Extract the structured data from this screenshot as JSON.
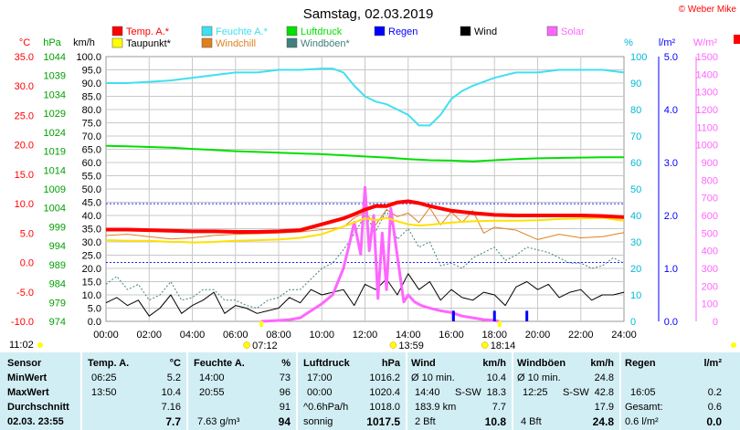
{
  "title": "Samstag, 02.03.2019",
  "copyright": "© Weber Mike",
  "legend": [
    {
      "label": "Temp. A.*",
      "color": "#ff0000"
    },
    {
      "label": "Feuchte A.*",
      "color": "#40e0f0"
    },
    {
      "label": "Luftdruck",
      "color": "#00e000"
    },
    {
      "label": "Regen",
      "color": "#0000ff"
    },
    {
      "label": "Wind",
      "color": "#000000"
    },
    {
      "label": "Solar",
      "color": "#ff66ff"
    },
    {
      "label": "Taupunkt*",
      "color": "#ffff00"
    },
    {
      "label": "Windchill",
      "color": "#e08020"
    },
    {
      "label": "Windböen*",
      "color": "#408080"
    }
  ],
  "axes": {
    "temp": {
      "unit": "°C",
      "color": "#ff0000",
      "ticks": [
        "35.0",
        "30.0",
        "25.0",
        "20.0",
        "15.0",
        "10.0",
        "5.0",
        "0.0",
        "-5.0",
        "-10.0"
      ]
    },
    "pressure": {
      "unit": "hPa",
      "color": "#00a000",
      "ticks": [
        "1044",
        "1039",
        "1034",
        "1029",
        "1024",
        "1019",
        "1014",
        "1009",
        "1004",
        "999",
        "994",
        "989",
        "984",
        "979",
        "974"
      ]
    },
    "wind": {
      "unit": "km/h",
      "color": "#000000",
      "ticks": [
        "100.0",
        "95.0",
        "90.0",
        "85.0",
        "80.0",
        "75.0",
        "70.0",
        "65.0",
        "60.0",
        "55.0",
        "50.0",
        "45.0",
        "40.0",
        "35.0",
        "30.0",
        "25.0",
        "20.0",
        "15.0",
        "10.0",
        "5.0",
        "0.0"
      ]
    },
    "humidity": {
      "unit": "%",
      "color": "#00b8d8",
      "ticks": [
        "100",
        "90",
        "80",
        "70",
        "60",
        "50",
        "40",
        "30",
        "20",
        "10",
        "0"
      ]
    },
    "rain": {
      "unit": "l/m²",
      "color": "#0000ff",
      "ticks": [
        "5.0",
        "4.0",
        "3.0",
        "2.0",
        "1.0",
        "0.0"
      ]
    },
    "solar": {
      "unit": "W/m²",
      "color": "#ff66ff",
      "ticks": [
        "1500",
        "1400",
        "1300",
        "1200",
        "1100",
        "1000",
        "900",
        "800",
        "700",
        "600",
        "500",
        "400",
        "300",
        "200",
        "100",
        "0"
      ]
    },
    "time": {
      "ticks": [
        "00:00",
        "02:00",
        "04:00",
        "06:00",
        "08:00",
        "10:00",
        "12:00",
        "14:00",
        "16:00",
        "18:00",
        "20:00",
        "22:00",
        "24:00"
      ]
    }
  },
  "sun": {
    "sunrise": "07:12",
    "noon": "13:59",
    "sunset": "18:14",
    "now": "11:02"
  },
  "stats": {
    "sensor": {
      "header": "Sensor",
      "min": "MinWert",
      "max": "MaxWert",
      "avg": "Durchschnitt",
      "current": "02.03. 23:55"
    },
    "temp": {
      "header": "Temp. A.",
      "unit": "°C",
      "min_time": "06:25",
      "min": "5.2",
      "max_time": "13:50",
      "max": "10.4",
      "avg": "7.16",
      "current": "7.7"
    },
    "humidity": {
      "header": "Feuchte A.",
      "unit": "%",
      "min_time": "14:00",
      "min": "73",
      "max_time": "20:55",
      "max": "96",
      "avg": "91",
      "abs": "7.63 g/m³",
      "current": "94"
    },
    "pressure": {
      "header": "Luftdruck",
      "unit": "hPa",
      "min_time": "17:00",
      "min": "1016.2",
      "max_time": "00:00",
      "max": "1020.4",
      "trend": "^0.6hPa/h",
      "avg": "1018.0",
      "state": "sonnig",
      "current": "1017.5"
    },
    "wind": {
      "header": "Wind",
      "unit": "km/h",
      "r1_label": "Ø 10 min.",
      "r1_val": "10.4",
      "r2_time": "14:40",
      "r2_dir": "S-SW",
      "r2_val": "18.3",
      "r3_label": "183.9 km",
      "r3_val": "7.7",
      "r4_label": "2 Bft",
      "r4_val": "10.8"
    },
    "gust": {
      "header": "Windböen",
      "unit": "km/h",
      "r1_label": "Ø 10 min.",
      "r1_val": "24.8",
      "r2_time": "12:25",
      "r2_dir": "S-SW",
      "r2_val": "42.8",
      "r3_val": "17.9",
      "r4_label": "4 Bft",
      "r4_val": "24.8"
    },
    "rain": {
      "header": "Regen",
      "unit": "l/m²",
      "r2_time": "16:05",
      "r2_val": "0.2",
      "r3_label": "Gesamt:",
      "r3_val": "0.6",
      "r4_label": "0.6 l/m²",
      "r4_val": "0.0"
    }
  },
  "chart_data": {
    "type": "line",
    "title": "Samstag, 02.03.2019",
    "x_unit": "hour of day",
    "xlim": [
      0,
      24
    ],
    "series": [
      {
        "name": "Feuchte A.*",
        "axis": "humidity",
        "unit": "%",
        "ylim": [
          0,
          100
        ],
        "x": [
          0,
          1,
          2,
          3,
          4,
          5,
          6,
          7,
          8,
          9,
          10,
          10.5,
          11,
          11.5,
          12,
          12.5,
          13,
          13.5,
          14,
          14.5,
          15,
          15.5,
          16,
          16.5,
          17,
          18,
          19,
          20,
          21,
          22,
          23,
          24
        ],
        "y": [
          90,
          90,
          90.5,
          91,
          92,
          93,
          94,
          94,
          95,
          95,
          95.5,
          95.5,
          94,
          89,
          85,
          83,
          82,
          80,
          78,
          74,
          74,
          78,
          84,
          87,
          89,
          92,
          94,
          94,
          95,
          95,
          95,
          94
        ]
      },
      {
        "name": "Luftdruck",
        "axis": "pressure",
        "unit": "hPa",
        "ylim": [
          974,
          1044
        ],
        "x": [
          0,
          1,
          2,
          3,
          4,
          5,
          6,
          7,
          8,
          9,
          10,
          11,
          12,
          13,
          14,
          15,
          16,
          17,
          18,
          19,
          20,
          21,
          22,
          23,
          24
        ],
        "y": [
          1020.4,
          1020.3,
          1020.1,
          1019.9,
          1019.6,
          1019.3,
          1019.0,
          1018.8,
          1018.6,
          1018.4,
          1018.2,
          1017.9,
          1017.6,
          1017.3,
          1016.9,
          1016.6,
          1016.5,
          1016.3,
          1016.6,
          1016.9,
          1017.1,
          1017.2,
          1017.3,
          1017.4,
          1017.4
        ]
      },
      {
        "name": "Temp. A.*",
        "axis": "temp",
        "unit": "°C",
        "ylim": [
          -10,
          35
        ],
        "x": [
          0,
          1,
          2,
          3,
          4,
          5,
          6,
          6.5,
          7,
          8,
          9,
          10,
          11,
          11.5,
          12,
          12.5,
          13,
          13.5,
          14,
          14.5,
          15,
          15.5,
          16,
          17,
          18,
          19,
          20,
          21,
          22,
          23,
          24
        ],
        "y": [
          5.6,
          5.6,
          5.5,
          5.4,
          5.3,
          5.3,
          5.2,
          5.2,
          5.2,
          5.3,
          5.5,
          6.5,
          7.5,
          8.2,
          9.0,
          9.6,
          9.6,
          10.2,
          10.4,
          10.1,
          9.6,
          9.2,
          8.8,
          8.4,
          8.1,
          8.0,
          8.0,
          8.0,
          8.0,
          7.9,
          7.7
        ]
      },
      {
        "name": "Taupunkt*",
        "axis": "temp",
        "unit": "°C",
        "ylim": [
          -10,
          35
        ],
        "x": [
          0,
          1,
          2,
          3,
          3.5,
          4,
          5,
          6,
          7,
          8,
          9,
          10,
          11,
          11.5,
          12,
          12.5,
          13,
          13.5,
          14,
          14.5,
          15,
          16,
          17,
          18,
          19,
          20,
          21,
          22,
          23,
          24
        ],
        "y": [
          3.8,
          3.7,
          3.7,
          3.5,
          3.5,
          3.4,
          3.5,
          3.7,
          3.8,
          3.9,
          4.2,
          4.8,
          6.1,
          6.8,
          7.5,
          7.2,
          7.6,
          7.0,
          6.5,
          6.3,
          6.4,
          6.8,
          7.0,
          7.1,
          7.1,
          7.2,
          7.4,
          7.5,
          7.6,
          7.1
        ]
      },
      {
        "name": "Windchill",
        "axis": "temp",
        "unit": "°C",
        "ylim": [
          -10,
          35
        ],
        "x": [
          0,
          1,
          2,
          3,
          4,
          5,
          6,
          7,
          8,
          9,
          10,
          11,
          11.5,
          12,
          12.5,
          13,
          13.5,
          14,
          14.5,
          15,
          15.5,
          16,
          16.5,
          17,
          17.5,
          18,
          19,
          20,
          21,
          22,
          23,
          24
        ],
        "y": [
          4.6,
          4.8,
          4.4,
          4.0,
          4.2,
          4.6,
          4.8,
          4.9,
          5.0,
          5.2,
          5.6,
          6.0,
          7.6,
          8.5,
          6.4,
          9.0,
          7.8,
          8.4,
          6.8,
          9.3,
          6.4,
          8.6,
          6.8,
          8.8,
          5.0,
          6.0,
          5.5,
          3.9,
          4.8,
          4.2,
          4.4,
          5.1
        ]
      },
      {
        "name": "Wind",
        "axis": "wind",
        "unit": "km/h",
        "ylim": [
          0,
          100
        ],
        "x": [
          0,
          0.5,
          1,
          1.5,
          2,
          2.5,
          3,
          3.5,
          4,
          4.5,
          5,
          5.5,
          6,
          6.5,
          7,
          7.5,
          8,
          8.5,
          9,
          9.5,
          10,
          10.5,
          11,
          11.5,
          12,
          12.5,
          13,
          13.5,
          14,
          14.5,
          15,
          15.5,
          16,
          16.5,
          17,
          17.5,
          18,
          18.5,
          19,
          19.5,
          20,
          20.5,
          21,
          21.5,
          22,
          22.5,
          23,
          23.5,
          24
        ],
        "y": [
          7,
          9,
          6,
          8,
          2,
          5,
          10,
          3,
          6,
          8,
          11,
          3,
          6,
          5,
          3,
          4,
          5,
          9,
          7,
          12,
          10,
          11,
          12,
          6,
          14,
          12,
          16,
          10,
          18,
          12,
          15,
          8,
          12,
          9,
          8,
          11,
          10,
          6,
          13,
          15,
          12,
          14,
          9,
          11,
          12,
          8,
          10,
          10,
          11
        ]
      },
      {
        "name": "Windböen*",
        "axis": "wind",
        "unit": "km/h",
        "ylim": [
          0,
          100
        ],
        "x": [
          0,
          0.5,
          1,
          1.5,
          2,
          2.5,
          3,
          3.5,
          4,
          4.5,
          5,
          5.5,
          6,
          6.5,
          7,
          7.5,
          8,
          8.5,
          9,
          9.5,
          10,
          10.5,
          11,
          11.5,
          12,
          12.5,
          13,
          13.5,
          14,
          14.5,
          15,
          15.5,
          16,
          16.5,
          17,
          17.5,
          18,
          18.5,
          19,
          19.5,
          20,
          20.5,
          21,
          21.5,
          22,
          22.5,
          23,
          23.5,
          24
        ],
        "y": [
          14,
          17,
          12,
          14,
          8,
          10,
          15,
          8,
          9,
          12,
          12,
          8,
          8,
          6,
          5,
          8,
          9,
          12,
          12,
          16,
          20,
          22,
          27,
          33,
          40,
          34,
          42,
          31,
          35,
          28,
          30,
          21,
          22,
          20,
          24,
          26,
          28,
          23,
          25,
          28,
          27,
          26,
          24,
          22,
          22,
          20,
          21,
          24,
          22
        ]
      },
      {
        "name": "Solar",
        "axis": "solar",
        "unit": "W/m²",
        "ylim": [
          0,
          1500
        ],
        "x": [
          7.2,
          8,
          8.5,
          9,
          9.5,
          10,
          10.5,
          11,
          11.3,
          11.5,
          11.8,
          12,
          12.2,
          12.4,
          12.6,
          12.8,
          13,
          13.2,
          13.5,
          13.8,
          14,
          14.3,
          14.6,
          15,
          15.5,
          16,
          16.5,
          17,
          17.5,
          18,
          18.2
        ],
        "y": [
          0,
          5,
          10,
          20,
          60,
          100,
          150,
          300,
          450,
          560,
          380,
          760,
          400,
          600,
          130,
          500,
          180,
          640,
          370,
          110,
          150,
          110,
          90,
          75,
          60,
          50,
          30,
          20,
          10,
          5,
          0
        ]
      },
      {
        "name": "Regen",
        "axis": "rain",
        "unit": "l/m²",
        "ylim": [
          0,
          5
        ],
        "x": [
          16.1,
          18.0,
          19.5
        ],
        "y": [
          0.2,
          0.2,
          0.2
        ]
      }
    ]
  }
}
